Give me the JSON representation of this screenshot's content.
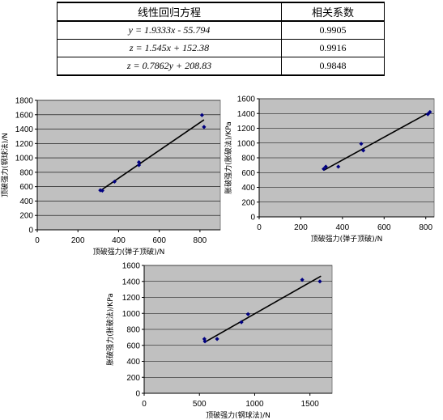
{
  "table": {
    "headers": [
      "线性回归方程",
      "相关系数"
    ],
    "rows": [
      {
        "equation": "y = 1.9333x - 55.794",
        "r": "0.9905"
      },
      {
        "equation": "z = 1.545x + 152.38",
        "r": "0.9916"
      },
      {
        "equation": "z = 0.7862y + 208.83",
        "r": "0.9848"
      }
    ]
  },
  "chart_data": [
    {
      "type": "scatter",
      "title": "",
      "xlabel": "顶破强力(弹子顶破)/N",
      "ylabel": "顶破强力(钢球法)/N",
      "xlim": [
        0,
        900
      ],
      "ylim": [
        0,
        1800
      ],
      "xticks": [
        0,
        200,
        400,
        600,
        800
      ],
      "yticks": [
        0,
        200,
        400,
        600,
        800,
        1000,
        1200,
        1400,
        1600,
        1800
      ],
      "grid": true,
      "points": [
        [
          310,
          550
        ],
        [
          320,
          545
        ],
        [
          380,
          670
        ],
        [
          500,
          900
        ],
        [
          500,
          940
        ],
        [
          810,
          1595
        ],
        [
          820,
          1430
        ]
      ],
      "trendline": {
        "slope": 1.9333,
        "intercept": -55.794,
        "x_range": [
          310,
          820
        ]
      }
    },
    {
      "type": "scatter",
      "title": "",
      "xlabel": "顶破强力(弹子顶破)/N",
      "ylabel": "胀破强力(胀破法)/KPa",
      "xlim": [
        0,
        840
      ],
      "ylim": [
        0,
        1600
      ],
      "xticks": [
        0,
        200,
        400,
        600,
        800
      ],
      "yticks": [
        0,
        200,
        400,
        600,
        800,
        1000,
        1200,
        1400,
        1600
      ],
      "grid": true,
      "points": [
        [
          310,
          650
        ],
        [
          320,
          680
        ],
        [
          380,
          680
        ],
        [
          490,
          990
        ],
        [
          500,
          900
        ],
        [
          810,
          1390
        ],
        [
          820,
          1420
        ]
      ],
      "trendline": {
        "slope": 1.545,
        "intercept": 152.38,
        "x_range": [
          310,
          820
        ]
      }
    },
    {
      "type": "scatter",
      "title": "",
      "xlabel": "顶破强力(钢球法)/N",
      "ylabel": "胀破强力(胀破法)/KPa",
      "xlim": [
        0,
        1700
      ],
      "ylim": [
        0,
        1600
      ],
      "xticks": [
        0,
        500,
        1000,
        1500
      ],
      "yticks": [
        0,
        200,
        400,
        600,
        800,
        1000,
        1200,
        1400,
        1600
      ],
      "grid": true,
      "points": [
        [
          545,
          680
        ],
        [
          550,
          650
        ],
        [
          660,
          680
        ],
        [
          880,
          890
        ],
        [
          940,
          990
        ],
        [
          1430,
          1420
        ],
        [
          1590,
          1400
        ]
      ],
      "trendline": {
        "slope": 0.7862,
        "intercept": 208.83,
        "x_range": [
          545,
          1600
        ]
      }
    }
  ]
}
